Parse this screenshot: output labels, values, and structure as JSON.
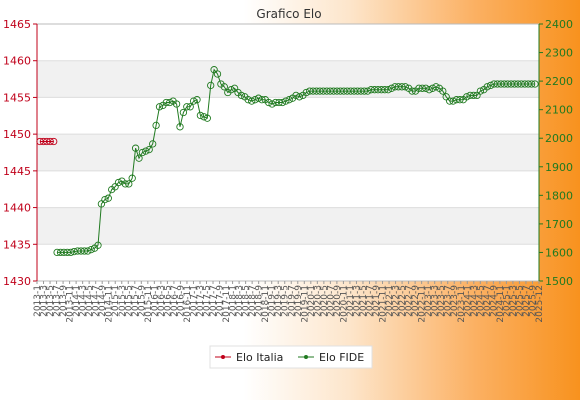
{
  "chart_data": {
    "type": "line",
    "title": "Grafico Elo",
    "xlabel": "",
    "ylabel": "",
    "grid": true,
    "legend_position": "bottom-center",
    "left_axis": {
      "ylim": [
        1430,
        1465
      ],
      "ticks": [
        "1430",
        "1435",
        "1440",
        "1445",
        "1450",
        "1455",
        "1460",
        "1465"
      ],
      "color": "#c0001a"
    },
    "right_axis": {
      "ylim": [
        1500,
        2400
      ],
      "ticks": [
        "1500",
        "1600",
        "1700",
        "1800",
        "1900",
        "2000",
        "2100",
        "2200",
        "2300",
        "2400"
      ],
      "color": "#207a20"
    },
    "x_tick_labels": [
      "2013-1",
      "2013-3",
      "2013-5",
      "2013-7",
      "2013-9",
      "2013-11",
      "2014-1",
      "2014-3",
      "2014-5",
      "2014-7",
      "2014-9",
      "2014-11",
      "2015-1",
      "2015-3",
      "2015-5",
      "2015-7",
      "2015-9",
      "2015-11",
      "2016-1",
      "2016-3",
      "2016-5",
      "2016-7",
      "2016-9",
      "2016-11",
      "2017-1",
      "2017-3",
      "2017-5",
      "2017-7",
      "2017-9",
      "2017-11",
      "2018-1",
      "2018-3",
      "2018-5",
      "2018-7",
      "2018-9",
      "2018-11",
      "2019-1",
      "2019-3",
      "2019-5",
      "2019-7",
      "2019-9",
      "2019-11",
      "2020-1",
      "2020-3",
      "2020-5",
      "2020-7",
      "2020-9",
      "2020-11",
      "2021-1",
      "2021-3",
      "2021-5",
      "2021-7",
      "2021-9",
      "2021-11",
      "2022-1",
      "2022-3",
      "2022-5",
      "2022-7",
      "2022-9",
      "2022-11",
      "2023-1",
      "2023-3",
      "2023-5",
      "2023-7",
      "2023-9",
      "2023-11",
      "2024-1",
      "2024-3",
      "2024-5",
      "2024-7",
      "2024-9",
      "2024-11",
      "2025-1",
      "2025-3",
      "2025-5",
      "2025-7",
      "2025-9",
      "2025-12"
    ],
    "series": [
      {
        "name": "Elo Italia",
        "axis": "left",
        "color": "#c0001a",
        "x_start": 0,
        "values": [
          1449,
          1449,
          1449,
          1449,
          1449
        ]
      },
      {
        "name": "Elo FIDE",
        "axis": "right",
        "color": "#207a20",
        "x_start": 5,
        "values": [
          1600,
          1600,
          1600,
          1600,
          1600,
          1603,
          1605,
          1605,
          1605,
          1605,
          1610,
          1615,
          1625,
          1770,
          1785,
          1790,
          1820,
          1830,
          1845,
          1850,
          1840,
          1840,
          1860,
          1965,
          1930,
          1950,
          1955,
          1960,
          1980,
          2045,
          2110,
          2115,
          2125,
          2125,
          2130,
          2120,
          2040,
          2090,
          2110,
          2110,
          2130,
          2135,
          2080,
          2075,
          2070,
          2185,
          2240,
          2225,
          2190,
          2180,
          2160,
          2170,
          2175,
          2160,
          2150,
          2145,
          2135,
          2130,
          2135,
          2140,
          2135,
          2135,
          2125,
          2120,
          2125,
          2125,
          2125,
          2130,
          2135,
          2140,
          2150,
          2145,
          2150,
          2160,
          2165,
          2165,
          2165,
          2165,
          2165,
          2165,
          2165,
          2165,
          2165,
          2165,
          2165,
          2165,
          2165,
          2165,
          2165,
          2165,
          2165,
          2165,
          2170,
          2170,
          2170,
          2170,
          2170,
          2170,
          2175,
          2180,
          2180,
          2180,
          2180,
          2175,
          2165,
          2165,
          2175,
          2175,
          2175,
          2170,
          2175,
          2180,
          2175,
          2165,
          2145,
          2130,
          2130,
          2135,
          2135,
          2135,
          2145,
          2150,
          2150,
          2150,
          2165,
          2170,
          2180,
          2185,
          2190,
          2190,
          2190,
          2190,
          2190,
          2190,
          2190,
          2190,
          2190,
          2190,
          2190,
          2190,
          2190
        ]
      }
    ]
  }
}
